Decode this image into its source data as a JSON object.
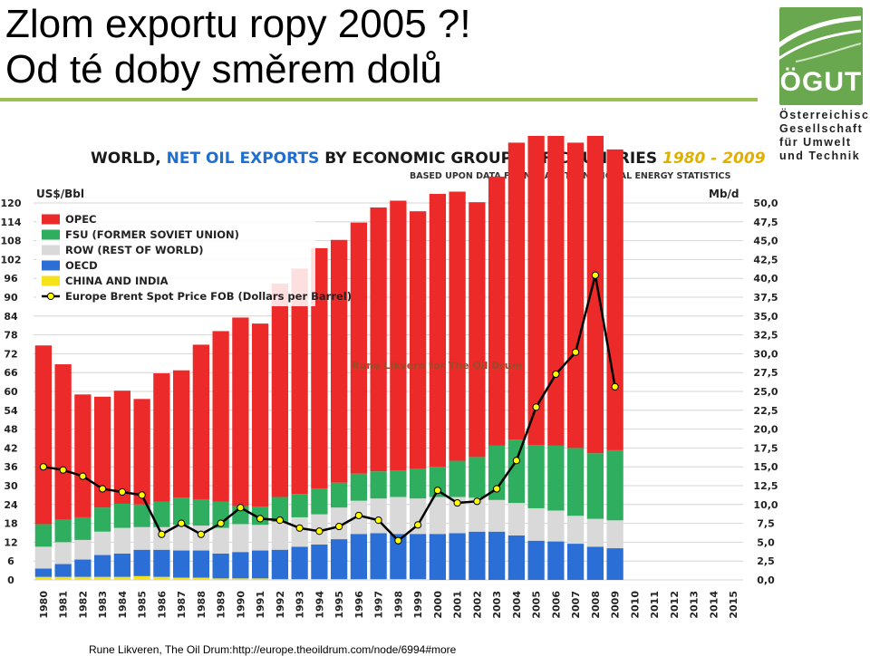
{
  "slide": {
    "title_line1": "Zlom exportu ropy 2005 ?!",
    "title_line2": "Od té doby směrem dolů",
    "caption": "Rune Likveren, The Oil Drum:http://europe.theoildrum.com/node/6994#more"
  },
  "logo": {
    "name": "ÖGUT",
    "line1": "Österreichische",
    "line2": "Gesellschaft",
    "line3": "für  Umwelt",
    "line4": "und  Technik",
    "color": "#6aa84f"
  },
  "chart_data": {
    "type": "bar",
    "stacked": true,
    "title_part1": "WORLD, ",
    "title_part2": "NET OIL EXPORTS",
    "title_part3": " BY ECONOMIC GROUPS OF COUNTRIES ",
    "title_part4": "1980 - 2009",
    "subtitle": "BASED UPON DATA FROM EIA INTERNATIONAL ENERGY STATISTICS",
    "ylabel_left": "US$/Bbl",
    "ylabel_right": "Mb/d",
    "watermark": "Rune Likvern for The Oil Drum",
    "ylim_left": [
      0,
      120
    ],
    "ylim_right": [
      0,
      50
    ],
    "left_ticks": [
      "0",
      "6",
      "12",
      "18",
      "24",
      "30",
      "36",
      "42",
      "48",
      "54",
      "60",
      "66",
      "72",
      "78",
      "84",
      "90",
      "96",
      "102",
      "108",
      "114",
      "120"
    ],
    "right_ticks": [
      "0,0",
      "2,5",
      "5,0",
      "7,5",
      "10,0",
      "12,5",
      "15,0",
      "17,5",
      "20,0",
      "22,5",
      "25,0",
      "27,5",
      "30,0",
      "32,5",
      "35,0",
      "37,5",
      "40,0",
      "42,5",
      "45,0",
      "47,5",
      "50,0"
    ],
    "grid": true,
    "legend_position": "top-left",
    "categories": [
      "1980",
      "1981",
      "1982",
      "1983",
      "1984",
      "1985",
      "1986",
      "1987",
      "1988",
      "1989",
      "1990",
      "1991",
      "1992",
      "1993",
      "1994",
      "1995",
      "1996",
      "1997",
      "1998",
      "1999",
      "2000",
      "2001",
      "2002",
      "2003",
      "2004",
      "2005",
      "2006",
      "2007",
      "2008",
      "2009",
      "2010",
      "2011",
      "2012",
      "2013",
      "2014",
      "2015"
    ],
    "series": [
      {
        "name": "CHINA AND INDIA",
        "color": "#f5e21a",
        "axis": "right",
        "values": [
          0.4,
          0.4,
          0.4,
          0.4,
          0.4,
          0.5,
          0.4,
          0.3,
          0.3,
          0.2,
          0.2,
          0.2,
          0.1,
          0.1,
          0.1,
          0.1,
          0.1,
          0.1,
          0.1,
          0.1,
          0,
          0,
          0,
          0,
          0,
          0,
          0,
          0,
          0,
          0,
          null,
          null,
          null,
          null,
          null,
          null
        ]
      },
      {
        "name": "OECD",
        "color": "#2b6fd6",
        "axis": "right",
        "values": [
          1.1,
          1.7,
          2.3,
          2.9,
          3.1,
          3.5,
          3.6,
          3.6,
          3.6,
          3.3,
          3.5,
          3.7,
          3.9,
          4.3,
          4.6,
          5.3,
          6.0,
          6.1,
          6.0,
          6.0,
          6.1,
          6.2,
          6.4,
          6.4,
          5.9,
          5.2,
          5.1,
          4.8,
          4.4,
          4.2,
          null,
          null,
          null,
          null,
          null,
          null
        ]
      },
      {
        "name": "ROW (REST OF WORLD)",
        "color": "#d9d9d9",
        "axis": "right",
        "values": [
          2.9,
          2.9,
          2.6,
          3.1,
          3.4,
          3.0,
          3.0,
          3.4,
          3.3,
          3.4,
          3.7,
          3.4,
          3.7,
          3.9,
          4.0,
          4.2,
          4.4,
          4.6,
          4.9,
          4.7,
          4.9,
          4.8,
          4.5,
          4.2,
          4.3,
          4.3,
          4.1,
          3.7,
          3.7,
          3.7,
          null,
          null,
          null,
          null,
          null,
          null
        ]
      },
      {
        "name": "FSU (FORMER SOVIET UNION)",
        "color": "#2eae5e",
        "axis": "right",
        "values": [
          3.0,
          3.0,
          3.0,
          3.2,
          3.2,
          3.0,
          3.4,
          3.6,
          3.5,
          3.5,
          2.4,
          2.4,
          3.3,
          3.1,
          3.4,
          3.3,
          3.6,
          3.6,
          3.5,
          3.9,
          4.0,
          4.8,
          5.4,
          7.2,
          8.4,
          8.4,
          8.6,
          9.0,
          8.7,
          9.3,
          null,
          null,
          null,
          null,
          null,
          null
        ]
      },
      {
        "name": "OPEC",
        "color": "#ed2a2a",
        "axis": "right",
        "values": [
          23.7,
          20.6,
          16.3,
          14.7,
          15.0,
          14.0,
          17.0,
          16.9,
          20.5,
          22.6,
          25.0,
          24.3,
          28.3,
          29.9,
          31.9,
          32.2,
          33.3,
          35.0,
          35.8,
          34.2,
          36.2,
          35.7,
          33.8,
          35.7,
          39.4,
          42.0,
          41.4,
          40.5,
          42.2,
          39.9,
          null,
          null,
          null,
          null,
          null,
          null
        ]
      },
      {
        "name": "Europe Brent Spot Price FOB (Dollars per Barrel)",
        "type": "line",
        "axis": "left",
        "color": "#000000",
        "marker_color": "#ffff00",
        "values": [
          36,
          35,
          33,
          29,
          28,
          27,
          14.5,
          18,
          14.5,
          18,
          23,
          19.5,
          19,
          16.5,
          15.5,
          17,
          20.5,
          19,
          12.5,
          17.5,
          28.5,
          24.5,
          25,
          29,
          38,
          55,
          65.5,
          72.5,
          97,
          61.5,
          null,
          null,
          null,
          null,
          null,
          null
        ]
      }
    ]
  }
}
